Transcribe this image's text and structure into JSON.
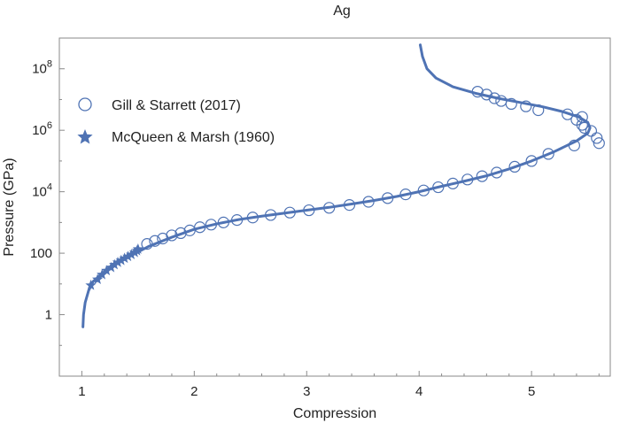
{
  "chart_data": {
    "type": "scatter",
    "title": "Ag",
    "xlabel": "Compression",
    "ylabel": "Pressure (GPa)",
    "xlim": [
      0.8,
      5.7
    ],
    "ylim": [
      0.01,
      1000000000.0
    ],
    "y_scale": "log",
    "grid": false,
    "legend_position": "top-left",
    "accent_color": "#4f73b4",
    "x_ticks": [
      {
        "value": 1,
        "label": "1"
      },
      {
        "value": 2,
        "label": "2"
      },
      {
        "value": 3,
        "label": "3"
      },
      {
        "value": 4,
        "label": "4"
      },
      {
        "value": 5,
        "label": "5"
      }
    ],
    "y_ticks": [
      {
        "value": 1,
        "base": "1",
        "exp": ""
      },
      {
        "value": 100,
        "base": "100",
        "exp": ""
      },
      {
        "value": 10000,
        "base": "10",
        "exp": "4"
      },
      {
        "value": 1000000,
        "base": "10",
        "exp": "6"
      },
      {
        "value": 100000000,
        "base": "10",
        "exp": "8"
      }
    ],
    "series": [
      {
        "name": "Gill & Starrett (2017)",
        "marker": "open-circle",
        "points": [
          [
            1.58,
            200
          ],
          [
            1.65,
            250
          ],
          [
            1.72,
            300
          ],
          [
            1.8,
            380
          ],
          [
            1.88,
            450
          ],
          [
            1.96,
            550
          ],
          [
            2.05,
            700
          ],
          [
            2.15,
            850
          ],
          [
            2.26,
            1000
          ],
          [
            2.38,
            1200
          ],
          [
            2.52,
            1450
          ],
          [
            2.68,
            1750
          ],
          [
            2.85,
            2100
          ],
          [
            3.02,
            2500
          ],
          [
            3.2,
            3000
          ],
          [
            3.38,
            3700
          ],
          [
            3.55,
            4700
          ],
          [
            3.72,
            6200
          ],
          [
            3.88,
            8200
          ],
          [
            4.04,
            11000
          ],
          [
            4.17,
            14000
          ],
          [
            4.3,
            18500
          ],
          [
            4.43,
            25000
          ],
          [
            4.56,
            32000
          ],
          [
            4.69,
            42000
          ],
          [
            4.85,
            65000
          ],
          [
            5.0,
            100000
          ],
          [
            5.15,
            170000
          ],
          [
            5.38,
            320000
          ],
          [
            5.58,
            560000
          ],
          [
            5.53,
            950000
          ],
          [
            5.45,
            1500000
          ],
          [
            5.4,
            2200000
          ],
          [
            5.32,
            3300000
          ],
          [
            5.06,
            4500000
          ],
          [
            4.95,
            6000000
          ],
          [
            4.82,
            7200000
          ],
          [
            4.73,
            9000000
          ],
          [
            4.67,
            11000000
          ],
          [
            4.6,
            14500000
          ],
          [
            4.52,
            18000000
          ],
          [
            5.45,
            2700000
          ],
          [
            5.6,
            380000
          ],
          [
            5.47,
            1200000
          ]
        ]
      },
      {
        "name": "McQueen & Marsh (1960)",
        "marker": "star",
        "points": [
          [
            1.08,
            9
          ],
          [
            1.14,
            14
          ],
          [
            1.18,
            20
          ],
          [
            1.22,
            27
          ],
          [
            1.26,
            34
          ],
          [
            1.29,
            42
          ],
          [
            1.32,
            50
          ],
          [
            1.35,
            58
          ],
          [
            1.38,
            68
          ],
          [
            1.41,
            78
          ],
          [
            1.44,
            90
          ],
          [
            1.47,
            105
          ],
          [
            1.49,
            120
          ],
          [
            1.5,
            135
          ]
        ]
      },
      {
        "name": "",
        "marker": "line",
        "points": [
          [
            1.01,
            0.4
          ],
          [
            1.015,
            1
          ],
          [
            1.03,
            2.5
          ],
          [
            1.06,
            6
          ],
          [
            1.1,
            12
          ],
          [
            1.2,
            25
          ],
          [
            1.3,
            45
          ],
          [
            1.4,
            70
          ],
          [
            1.5,
            110
          ],
          [
            1.6,
            170
          ],
          [
            1.8,
            330
          ],
          [
            2.0,
            600
          ],
          [
            2.2,
            900
          ],
          [
            2.4,
            1250
          ],
          [
            2.6,
            1600
          ],
          [
            2.8,
            2000
          ],
          [
            3.0,
            2500
          ],
          [
            3.2,
            3100
          ],
          [
            3.4,
            4000
          ],
          [
            3.6,
            5200
          ],
          [
            3.8,
            7000
          ],
          [
            4.0,
            10000
          ],
          [
            4.2,
            15000
          ],
          [
            4.4,
            22000
          ],
          [
            4.6,
            33000
          ],
          [
            4.8,
            55000
          ],
          [
            5.0,
            100000
          ],
          [
            5.2,
            200000
          ],
          [
            5.4,
            450000
          ],
          [
            5.5,
            800000
          ],
          [
            5.52,
            1200000
          ],
          [
            5.5,
            1800000
          ],
          [
            5.42,
            2700000
          ],
          [
            5.28,
            4000000
          ],
          [
            5.1,
            5800000
          ],
          [
            4.9,
            8000000
          ],
          [
            4.7,
            11000000
          ],
          [
            4.5,
            16000000
          ],
          [
            4.3,
            26000000
          ],
          [
            4.15,
            50000000
          ],
          [
            4.07,
            100000000
          ],
          [
            4.03,
            250000000
          ],
          [
            4.01,
            600000000
          ]
        ]
      }
    ]
  }
}
